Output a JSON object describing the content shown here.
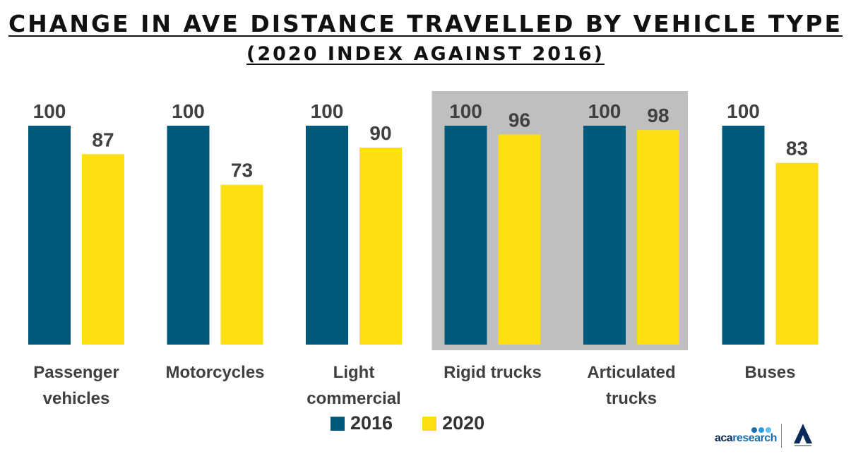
{
  "title": "CHANGE IN AVE DISTANCE TRAVELLED BY VEHICLE TYPE",
  "subtitle": "(2020 INDEX AGAINST 2016)",
  "colors": {
    "s2016": "#00587a",
    "s2020": "#fddf14",
    "highlight": "#bfbfbf",
    "label": "#404040"
  },
  "chart_data": {
    "type": "bar",
    "categories": [
      [
        "Passenger",
        "vehicles"
      ],
      [
        "Motorcycles"
      ],
      [
        "Light",
        "commercial"
      ],
      [
        "Rigid trucks"
      ],
      [
        "Articulated",
        "trucks"
      ],
      [
        "Buses"
      ]
    ],
    "series": [
      {
        "name": "2016",
        "values": [
          100,
          100,
          100,
          100,
          100,
          100
        ]
      },
      {
        "name": "2020",
        "values": [
          87,
          73,
          90,
          96,
          98,
          83
        ]
      }
    ],
    "highlighted_categories": [
      "Rigid trucks",
      "Articulated trucks"
    ],
    "ylim": [
      0,
      100
    ],
    "grid": false,
    "legend_position": "bottom"
  },
  "legend": [
    {
      "label": "2016",
      "color": "#00587a"
    },
    {
      "label": "2020",
      "color": "#fddf14"
    }
  ],
  "logo": {
    "part1": "aca",
    "part2": "research"
  }
}
